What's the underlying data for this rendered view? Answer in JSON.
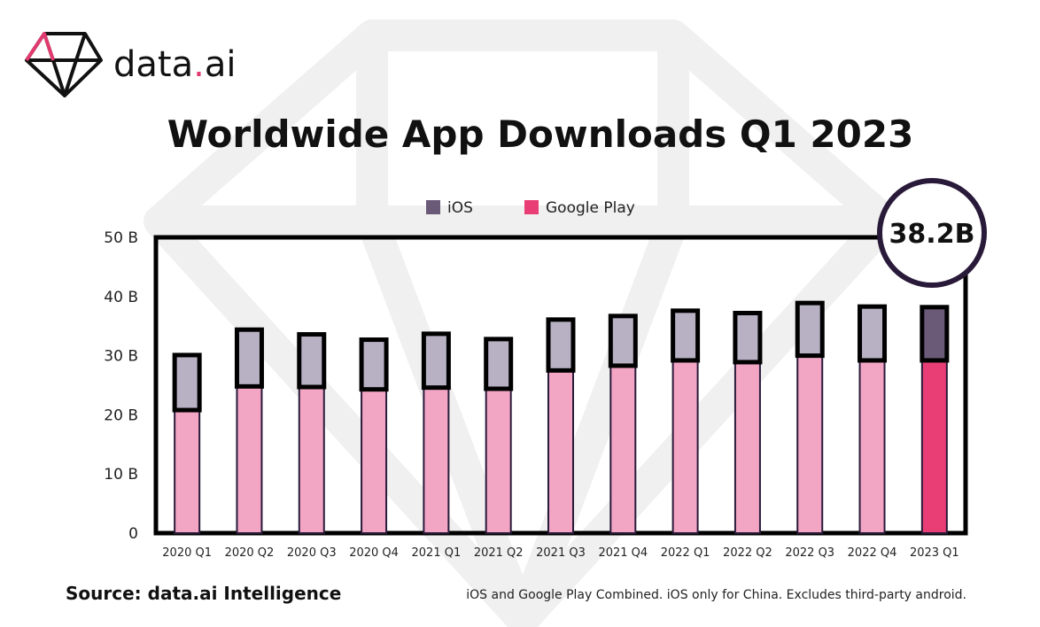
{
  "brand": {
    "name_prefix": "data",
    "name_dot": ".",
    "name_suffix": "ai"
  },
  "colors": {
    "ios": "#b8b1c4",
    "ios_highlight": "#6a5a78",
    "google_play": "#f2a6c4",
    "google_play_highlight": "#e83e75",
    "outline": "#000000",
    "brand_dot": "#e03a6e"
  },
  "chart_data": {
    "type": "bar",
    "stacked": true,
    "title": "Worldwide App Downloads Q1 2023",
    "categories": [
      "2020 Q1",
      "2020 Q2",
      "2020 Q3",
      "2020 Q4",
      "2021 Q1",
      "2021 Q2",
      "2021 Q3",
      "2021 Q4",
      "2022 Q1",
      "2022 Q2",
      "2022 Q3",
      "2022 Q4",
      "2023 Q1"
    ],
    "series": [
      {
        "name": "Google Play",
        "values": [
          20.8,
          24.8,
          24.7,
          24.3,
          24.6,
          24.4,
          27.5,
          28.3,
          29.2,
          28.9,
          30.0,
          29.2,
          29.2
        ]
      },
      {
        "name": "iOS",
        "values": [
          9.3,
          9.6,
          8.9,
          8.4,
          9.1,
          8.4,
          8.6,
          8.4,
          8.4,
          8.3,
          8.9,
          9.1,
          9.0
        ]
      }
    ],
    "ylim": [
      0,
      50
    ],
    "yticks": [
      0,
      10,
      20,
      30,
      40,
      50
    ],
    "ytick_labels": [
      "0",
      "10 B",
      "20 B",
      "30 B",
      "40 B",
      "50 B"
    ],
    "legend": [
      "iOS",
      "Google Play"
    ],
    "legend_position": "top-center",
    "highlight_category": "2023 Q1",
    "callout": "38.2B",
    "grid": false
  },
  "footer": {
    "source": "Source: data.ai Intelligence",
    "note": "iOS and Google Play Combined. iOS only for China. Excludes third-party android."
  }
}
